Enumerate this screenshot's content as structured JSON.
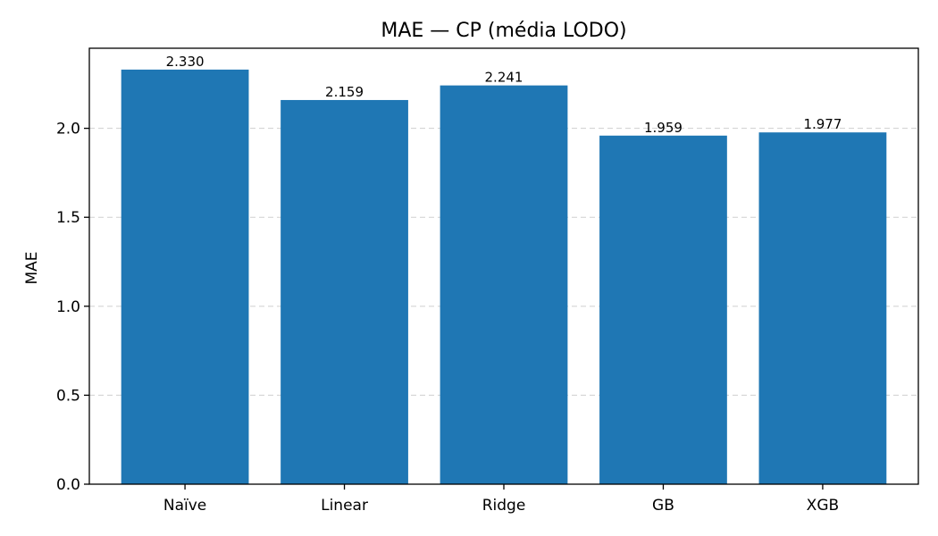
{
  "chart_data": {
    "type": "bar",
    "title": "MAE — CP (média LODO)",
    "xlabel": "",
    "ylabel": "MAE",
    "categories": [
      "Naïve",
      "Linear",
      "Ridge",
      "GB",
      "XGB"
    ],
    "values": [
      2.33,
      2.159,
      2.241,
      1.959,
      1.977
    ],
    "value_labels": [
      "2.330",
      "2.159",
      "2.241",
      "1.959",
      "1.977"
    ],
    "ylim": [
      0,
      2.45
    ],
    "yticks": [
      0.0,
      0.5,
      1.0,
      1.5,
      2.0
    ],
    "ytick_labels": [
      "0.0",
      "0.5",
      "1.0",
      "1.5",
      "2.0"
    ],
    "grid": "horizontal dashed",
    "bar_color": "#1f77b4"
  }
}
